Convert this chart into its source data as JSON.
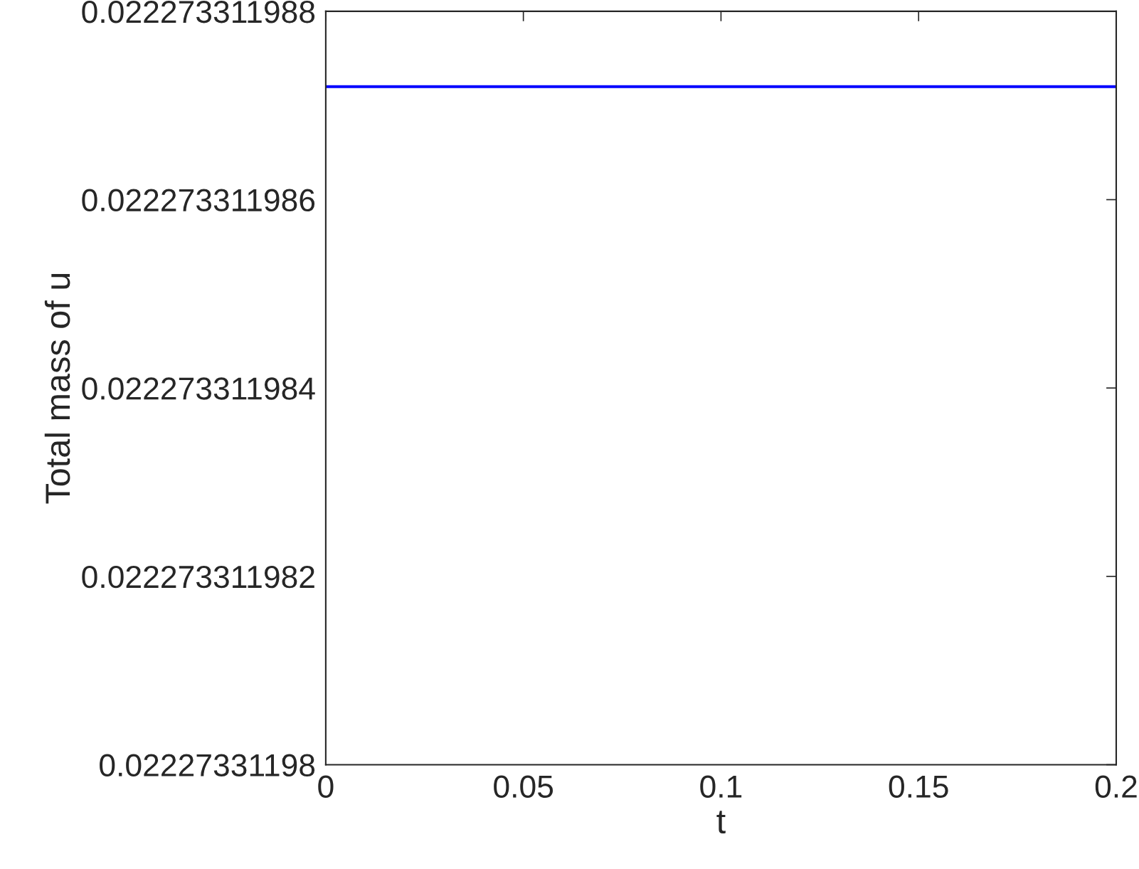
{
  "chart_data": {
    "type": "line",
    "xlabel": "t",
    "ylabel": "Total mass of u",
    "x": [
      0,
      0.2
    ],
    "series": [
      {
        "color": "#0000ff",
        "values": [
          0.0222733119872,
          0.0222733119872
        ]
      }
    ],
    "xlim": [
      0,
      0.2
    ],
    "xticks": [
      0,
      0.05,
      0.1,
      0.15,
      0.2
    ],
    "ylim": [
      0.02227331198,
      0.022273311988
    ],
    "yticks": [
      0.02227331198,
      0.022273311982,
      0.022273311984,
      0.022273311986,
      0.022273311988
    ],
    "grid": false,
    "line_style": "solid",
    "marker": "none"
  }
}
